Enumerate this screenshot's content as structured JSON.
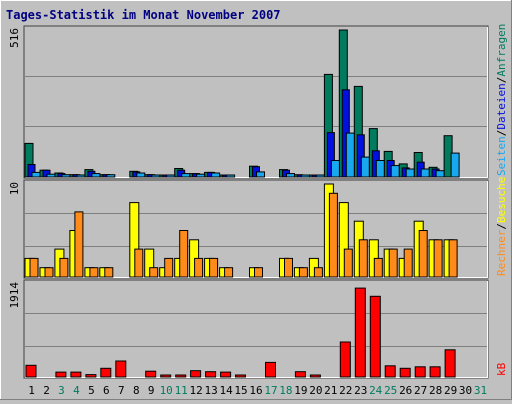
{
  "title": "Tages-Statistik im Monat November 2007",
  "colors": {
    "background": "#c0c0c0",
    "title": "#000080",
    "grid": "#808080",
    "anfragen": "#007b5e",
    "dateien": "#0010e0",
    "seiten": "#18a8f0",
    "besuche": "#ffff00",
    "rechner": "#ff8c1a",
    "kb": "#ff0000",
    "weekend_label": "#007b5e",
    "weekday_label": "#000000"
  },
  "legend": {
    "anfragen": "Anfragen",
    "dateien": "Dateien",
    "seiten": "Seiten",
    "besuche": "Besuche",
    "rechner": "Rechner",
    "kb": "kB",
    "sep": "/"
  },
  "days": [
    "1",
    "2",
    "3",
    "4",
    "5",
    "6",
    "7",
    "8",
    "9",
    "10",
    "11",
    "12",
    "13",
    "14",
    "15",
    "16",
    "17",
    "18",
    "19",
    "20",
    "21",
    "22",
    "23",
    "24",
    "25",
    "26",
    "27",
    "28",
    "29",
    "30",
    "31"
  ],
  "weekend_days": [
    "3",
    "4",
    "10",
    "11",
    "17",
    "18",
    "24",
    "25",
    "31"
  ],
  "chart_data": [
    {
      "type": "bar",
      "panel": "top",
      "ymax_label": "516",
      "ylim": [
        0,
        516
      ],
      "categories": [
        "1",
        "2",
        "3",
        "4",
        "5",
        "6",
        "7",
        "8",
        "9",
        "10",
        "11",
        "12",
        "13",
        "14",
        "15",
        "16",
        "17",
        "18",
        "19",
        "20",
        "21",
        "22",
        "23",
        "24",
        "25",
        "26",
        "27",
        "28",
        "29",
        "30",
        "31"
      ],
      "series": [
        {
          "name": "Anfragen",
          "key": "anfragen",
          "values": [
            118,
            24,
            14,
            8,
            26,
            8,
            0,
            20,
            8,
            2,
            30,
            12,
            16,
            2,
            0,
            38,
            0,
            26,
            8,
            4,
            360,
            516,
            318,
            170,
            90,
            46,
            86,
            34,
            145,
            0,
            0
          ]
        },
        {
          "name": "Dateien",
          "key": "dateien",
          "values": [
            44,
            24,
            12,
            8,
            20,
            8,
            0,
            18,
            8,
            2,
            24,
            12,
            16,
            2,
            0,
            36,
            0,
            24,
            6,
            4,
            156,
            306,
            148,
            92,
            58,
            32,
            52,
            28,
            0,
            0,
            0
          ]
        },
        {
          "name": "Seiten",
          "key": "seiten",
          "values": [
            16,
            10,
            8,
            6,
            12,
            8,
            0,
            14,
            6,
            2,
            12,
            10,
            14,
            2,
            0,
            18,
            0,
            12,
            4,
            4,
            58,
            154,
            70,
            58,
            40,
            28,
            28,
            22,
            84,
            0,
            0
          ]
        }
      ]
    },
    {
      "type": "bar",
      "panel": "middle",
      "ymax_label": "10",
      "ylim": [
        0,
        10
      ],
      "categories": [
        "1",
        "2",
        "3",
        "4",
        "5",
        "6",
        "7",
        "8",
        "9",
        "10",
        "11",
        "12",
        "13",
        "14",
        "15",
        "16",
        "17",
        "18",
        "19",
        "20",
        "21",
        "22",
        "23",
        "24",
        "25",
        "26",
        "27",
        "28",
        "29",
        "30",
        "31"
      ],
      "series": [
        {
          "name": "Besuche",
          "key": "besuche",
          "values": [
            2,
            1,
            3,
            5,
            1,
            1,
            0,
            8,
            3,
            1,
            2,
            4,
            2,
            1,
            0,
            1,
            0,
            2,
            1,
            2,
            10,
            8,
            6,
            4,
            3,
            2,
            6,
            4,
            4,
            0,
            0
          ]
        },
        {
          "name": "Rechner",
          "key": "rechner",
          "values": [
            2,
            1,
            2,
            7,
            1,
            1,
            0,
            3,
            1,
            2,
            5,
            2,
            2,
            1,
            0,
            1,
            0,
            2,
            1,
            1,
            9,
            3,
            4,
            2,
            3,
            3,
            5,
            4,
            4,
            0,
            0
          ]
        }
      ]
    },
    {
      "type": "bar",
      "panel": "bottom",
      "ymax_label": "1914",
      "ylim": [
        0,
        1914
      ],
      "categories": [
        "1",
        "2",
        "3",
        "4",
        "5",
        "6",
        "7",
        "8",
        "9",
        "10",
        "11",
        "12",
        "13",
        "14",
        "15",
        "16",
        "17",
        "18",
        "19",
        "20",
        "21",
        "22",
        "23",
        "24",
        "25",
        "26",
        "27",
        "28",
        "29",
        "30",
        "31"
      ],
      "series": [
        {
          "name": "kB",
          "key": "kb",
          "values": [
            240,
            0,
            100,
            100,
            50,
            180,
            330,
            0,
            120,
            40,
            40,
            130,
            110,
            100,
            40,
            0,
            300,
            0,
            110,
            30,
            0,
            720,
            1830,
            1660,
            230,
            180,
            210,
            210,
            560,
            0,
            0
          ]
        }
      ]
    }
  ]
}
